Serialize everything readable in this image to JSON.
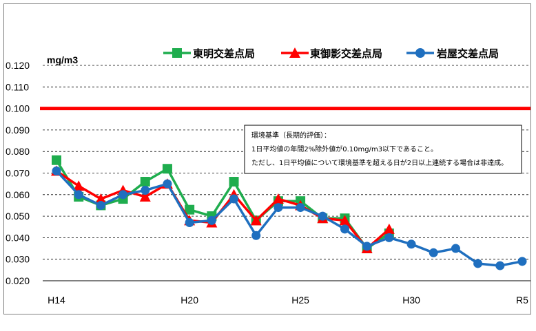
{
  "chart_data": {
    "type": "line",
    "ylabel": "mg/m3",
    "ylim": [
      0.02,
      0.12
    ],
    "yticks": [
      "0.120",
      "0.110",
      "0.100",
      "0.090",
      "0.080",
      "0.070",
      "0.060",
      "0.050",
      "0.040",
      "0.030",
      "0.020"
    ],
    "x": [
      "H14",
      "H15",
      "H16",
      "H17",
      "H18",
      "H19",
      "H20",
      "H21",
      "H22",
      "H23",
      "H24",
      "H25",
      "H26",
      "H27",
      "H28",
      "H29",
      "H30",
      "R1",
      "R2",
      "R3",
      "R4",
      "R5"
    ],
    "xtick_labels": [
      {
        "index": 0,
        "text": "H14"
      },
      {
        "index": 6,
        "text": "H20"
      },
      {
        "index": 11,
        "text": "H25"
      },
      {
        "index": 16,
        "text": "H30"
      },
      {
        "index": 21,
        "text": "R5"
      }
    ],
    "grid": "horizontal dashed",
    "standard_line": {
      "value": 0.1,
      "color": "#ff0000"
    },
    "note": {
      "lines": [
        "環境基準（長期的評価）：",
        "1日平均値の年間2%除外値が0.10mg/m3以下であること。",
        "ただし、1日平均値について環境基準を超える日が2日以上連続する場合は非達成。"
      ]
    },
    "legend_position": "top-right",
    "series": [
      {
        "name": "東明交差点局",
        "color": "#1fad4e",
        "marker": "square",
        "values": [
          0.076,
          0.059,
          0.055,
          0.058,
          0.066,
          0.072,
          0.053,
          0.05,
          0.066,
          0.048,
          0.057,
          0.057,
          0.049,
          0.049,
          0.035,
          0.042,
          null,
          null,
          null,
          null,
          null,
          null
        ]
      },
      {
        "name": "東御影交差点局",
        "color": "#ff0000",
        "marker": "triangle",
        "values": [
          0.071,
          0.064,
          0.058,
          0.062,
          0.059,
          0.065,
          0.048,
          0.047,
          0.06,
          0.048,
          0.058,
          0.055,
          0.049,
          0.048,
          0.035,
          0.044,
          null,
          null,
          null,
          null,
          null,
          null
        ]
      },
      {
        "name": "岩屋交差点局",
        "color": "#1f6fbf",
        "marker": "circle",
        "values": [
          0.071,
          0.06,
          0.055,
          0.06,
          0.062,
          0.065,
          0.047,
          0.048,
          0.058,
          0.041,
          0.054,
          0.054,
          0.05,
          0.044,
          0.036,
          0.04,
          0.037,
          0.033,
          0.035,
          0.028,
          0.027,
          0.029
        ]
      }
    ]
  }
}
